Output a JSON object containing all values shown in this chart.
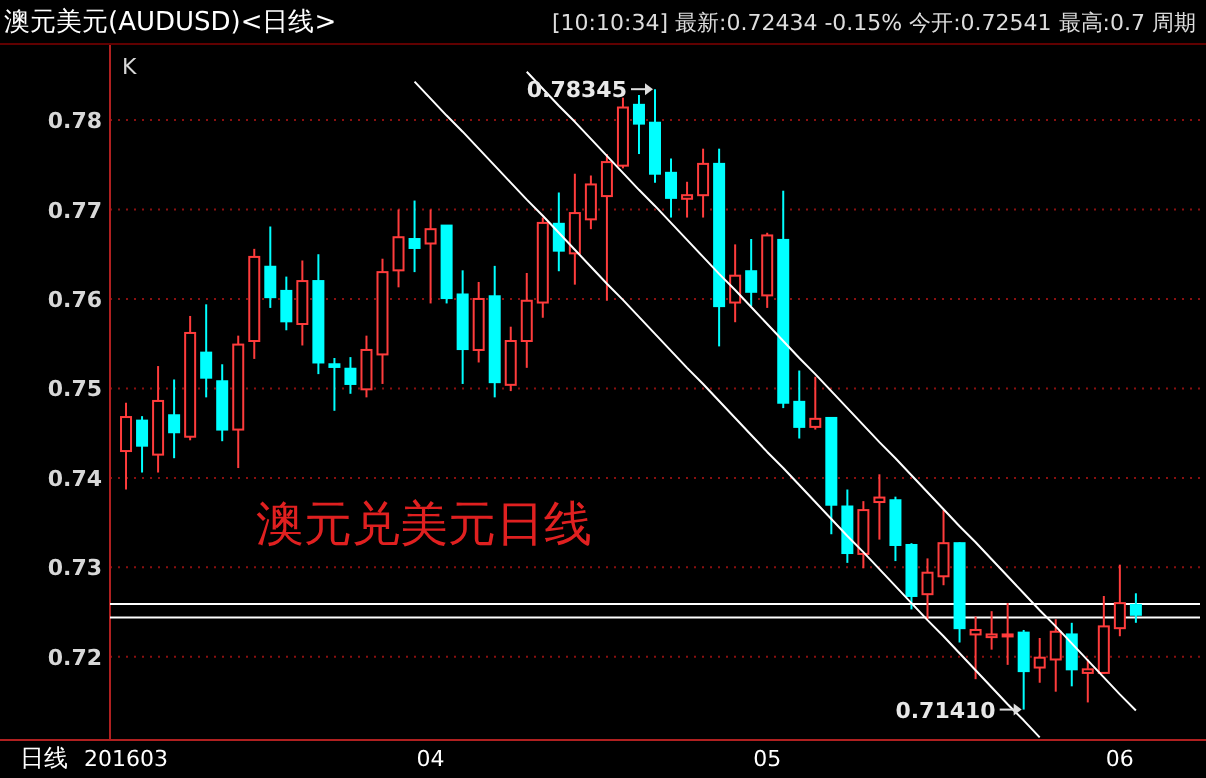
{
  "chart_data": {
    "type": "candlestick",
    "title": "澳元美元(AUDUSD)<日线>",
    "subtitle": "[10:10:34] 最新:0.72434 -0.15% 今开:0.72541 最高:0.7 周期",
    "xlabel": "日线",
    "ylabel": "K",
    "annotations": [
      "澳元兑美元日线",
      "0.78345",
      "0.71410"
    ],
    "categories": [
      "201603",
      null,
      null,
      null,
      null,
      null,
      null,
      null,
      null,
      null,
      null,
      null,
      null,
      null,
      null,
      null,
      null,
      null,
      null,
      "04",
      null,
      null,
      null,
      null,
      null,
      null,
      null,
      null,
      null,
      null,
      null,
      null,
      null,
      null,
      null,
      null,
      null,
      null,
      null,
      null,
      "05",
      null,
      null,
      null,
      null,
      null,
      null,
      null,
      null,
      null,
      null,
      null,
      null,
      null,
      null,
      null,
      null,
      null,
      null,
      null,
      null,
      null,
      "06",
      null
    ],
    "series": [
      {
        "type": "candlestick",
        "ohlc": [
          [
            0.743,
            0.7484,
            0.7387,
            0.7468
          ],
          [
            0.7464,
            0.7469,
            0.7406,
            0.7436
          ],
          [
            0.7426,
            0.7525,
            0.7406,
            0.7486
          ],
          [
            0.747,
            0.751,
            0.7422,
            0.7451
          ],
          [
            0.7446,
            0.7581,
            0.7442,
            0.7562
          ],
          [
            0.754,
            0.7594,
            0.749,
            0.7512
          ],
          [
            0.7508,
            0.7527,
            0.7441,
            0.7454
          ],
          [
            0.7454,
            0.7559,
            0.7411,
            0.7549
          ],
          [
            0.7553,
            0.7656,
            0.7533,
            0.7647
          ],
          [
            0.7636,
            0.7681,
            0.759,
            0.7602
          ],
          [
            0.7609,
            0.7625,
            0.7565,
            0.7575
          ],
          [
            0.7572,
            0.7643,
            0.7548,
            0.762
          ],
          [
            0.762,
            0.765,
            0.7516,
            0.7529
          ],
          [
            0.7527,
            0.7534,
            0.7475,
            0.7524
          ],
          [
            0.7522,
            0.7535,
            0.7494,
            0.7505
          ],
          [
            0.7499,
            0.7559,
            0.749,
            0.7543
          ],
          [
            0.7538,
            0.7645,
            0.7505,
            0.763
          ],
          [
            0.7632,
            0.77,
            0.7613,
            0.7669
          ],
          [
            0.7667,
            0.771,
            0.763,
            0.7657
          ],
          [
            0.7662,
            0.77,
            0.7595,
            0.7678
          ],
          [
            0.7682,
            0.7682,
            0.7595,
            0.7601
          ],
          [
            0.7605,
            0.7632,
            0.7505,
            0.7544
          ],
          [
            0.7543,
            0.7619,
            0.7529,
            0.76
          ],
          [
            0.7603,
            0.7637,
            0.749,
            0.7507
          ],
          [
            0.7504,
            0.7569,
            0.7497,
            0.7553
          ],
          [
            0.7553,
            0.7629,
            0.7523,
            0.7598
          ],
          [
            0.7596,
            0.7691,
            0.7579,
            0.7685
          ],
          [
            0.7684,
            0.7719,
            0.7631,
            0.7654
          ],
          [
            0.7651,
            0.774,
            0.7616,
            0.7696
          ],
          [
            0.7689,
            0.7738,
            0.7678,
            0.7728
          ],
          [
            0.7715,
            0.7762,
            0.7598,
            0.7753
          ],
          [
            0.7749,
            0.7825,
            0.7746,
            0.7814
          ],
          [
            0.7817,
            0.7828,
            0.7762,
            0.7796
          ],
          [
            0.7797,
            0.78345,
            0.773,
            0.774
          ],
          [
            0.7741,
            0.7757,
            0.7691,
            0.7713
          ],
          [
            0.7712,
            0.7731,
            0.7691,
            0.7716
          ],
          [
            0.7716,
            0.7768,
            0.7691,
            0.7751
          ],
          [
            0.7751,
            0.7768,
            0.7547,
            0.7592
          ],
          [
            0.7596,
            0.7661,
            0.7574,
            0.7626
          ],
          [
            0.7631,
            0.7667,
            0.7592,
            0.7608
          ],
          [
            0.7604,
            0.7674,
            0.759,
            0.7671
          ],
          [
            0.7666,
            0.7721,
            0.7478,
            0.7484
          ],
          [
            0.7485,
            0.752,
            0.7444,
            0.7457
          ],
          [
            0.7457,
            0.7513,
            0.7454,
            0.7466
          ],
          [
            0.7467,
            0.7468,
            0.7337,
            0.737
          ],
          [
            0.7368,
            0.7387,
            0.7305,
            0.7316
          ],
          [
            0.7315,
            0.7374,
            0.7299,
            0.7364
          ],
          [
            0.7373,
            0.7404,
            0.7331,
            0.7378
          ],
          [
            0.7375,
            0.7379,
            0.7307,
            0.7325
          ],
          [
            0.7325,
            0.7327,
            0.7253,
            0.7268
          ],
          [
            0.727,
            0.731,
            0.7242,
            0.7294
          ],
          [
            0.729,
            0.7364,
            0.728,
            0.7327
          ],
          [
            0.7327,
            0.7328,
            0.7216,
            0.7232
          ],
          [
            0.7225,
            0.7245,
            0.7175,
            0.723
          ],
          [
            0.7222,
            0.7251,
            0.7208,
            0.7225
          ],
          [
            0.7224,
            0.726,
            0.7191,
            0.7225
          ],
          [
            0.7227,
            0.723,
            0.7141,
            0.7184
          ],
          [
            0.7188,
            0.7221,
            0.7171,
            0.7199
          ],
          [
            0.7197,
            0.7242,
            0.7161,
            0.7228
          ],
          [
            0.7225,
            0.7238,
            0.7167,
            0.7186
          ],
          [
            0.7182,
            0.7197,
            0.7149,
            0.7186
          ],
          [
            0.7182,
            0.7268,
            0.7181,
            0.7234
          ],
          [
            0.7232,
            0.7303,
            0.7223,
            0.726
          ],
          [
            0.7258,
            0.7271,
            0.7238,
            0.7247
          ]
        ],
        "colors": [
          "#ff3c3c",
          "#00ffff",
          "#ff3c3c",
          "#00ffff",
          "#ff3c3c",
          "#00ffff",
          "#00ffff",
          "#ff3c3c",
          "#ff3c3c",
          "#00ffff",
          "#00ffff",
          "#ff3c3c",
          "#00ffff",
          "#00ffff",
          "#00ffff",
          "#ff3c3c",
          "#ff3c3c",
          "#ff3c3c",
          "#00ffff",
          "#ff3c3c",
          "#00ffff",
          "#00ffff",
          "#ff3c3c",
          "#00ffff",
          "#ff3c3c",
          "#ff3c3c",
          "#ff3c3c",
          "#00ffff",
          "#ff3c3c",
          "#ff3c3c",
          "#ff3c3c",
          "#ff3c3c",
          "#00ffff",
          "#00ffff",
          "#00ffff",
          "#ff3c3c",
          "#ff3c3c",
          "#00ffff",
          "#ff3c3c",
          "#00ffff",
          "#ff3c3c",
          "#00ffff",
          "#00ffff",
          "#ff3c3c",
          "#00ffff",
          "#00ffff",
          "#ff3c3c",
          "#ff3c3c",
          "#00ffff",
          "#00ffff",
          "#ff3c3c",
          "#ff3c3c",
          "#00ffff",
          "#ff3c3c",
          "#ff3c3c",
          "#ff3c3c",
          "#00ffff",
          "#ff3c3c",
          "#ff3c3c",
          "#00ffff",
          "#ff3c3c",
          "#ff3c3c",
          "#ff3c3c",
          "#00ffff"
        ]
      },
      {
        "type": "line",
        "color": "#ffffff",
        "values": [
          null,
          null,
          null,
          null,
          null,
          null,
          null,
          null,
          null,
          null,
          null,
          null,
          null,
          null,
          null,
          null,
          null,
          null,
          0.7843,
          0.7824,
          0.7805,
          0.7787,
          0.7768,
          0.7749,
          0.773,
          0.7711,
          0.7693,
          0.7674,
          0.7655,
          0.7636,
          0.7617,
          0.7599,
          0.758,
          0.7561,
          0.7542,
          0.7523,
          0.7505,
          0.7486,
          0.7467,
          0.7448,
          0.7429,
          0.7411,
          0.7392,
          0.7373,
          0.7354,
          0.7335,
          0.7317,
          0.7298,
          0.7279,
          0.726,
          0.7241,
          0.7223,
          0.7204,
          0.7185,
          0.7166,
          0.7147,
          0.7129,
          0.711,
          null,
          null,
          null,
          null,
          null,
          null
        ]
      },
      {
        "type": "line",
        "color": "#ffffff",
        "values": [
          null,
          null,
          null,
          null,
          null,
          null,
          null,
          null,
          null,
          null,
          null,
          null,
          null,
          null,
          null,
          null,
          null,
          null,
          null,
          null,
          null,
          null,
          null,
          null,
          null,
          0.7854,
          0.7835,
          0.7816,
          0.7798,
          0.7779,
          0.776,
          0.7741,
          0.7722,
          0.7704,
          0.7685,
          0.7666,
          0.7647,
          0.7628,
          0.761,
          0.7591,
          0.7572,
          0.7553,
          0.7534,
          0.7516,
          0.7497,
          0.7478,
          0.7459,
          0.744,
          0.7422,
          0.7403,
          0.7384,
          0.7365,
          0.7346,
          0.7328,
          0.7309,
          0.729,
          0.7271,
          0.7252,
          0.7234,
          0.7215,
          0.7196,
          0.7177,
          0.7158,
          0.714
        ]
      }
    ],
    "ylim": [
      0.7107,
      0.7885
    ],
    "yticks": [
      0.72,
      0.73,
      0.74,
      0.75,
      0.76,
      0.77,
      0.78
    ],
    "ref_lines": [
      {
        "axis": "y",
        "value": 0.7259,
        "color": "#ffffff"
      },
      {
        "axis": "y",
        "value": 0.7244,
        "color": "#ffffff"
      }
    ],
    "grid": "y"
  }
}
